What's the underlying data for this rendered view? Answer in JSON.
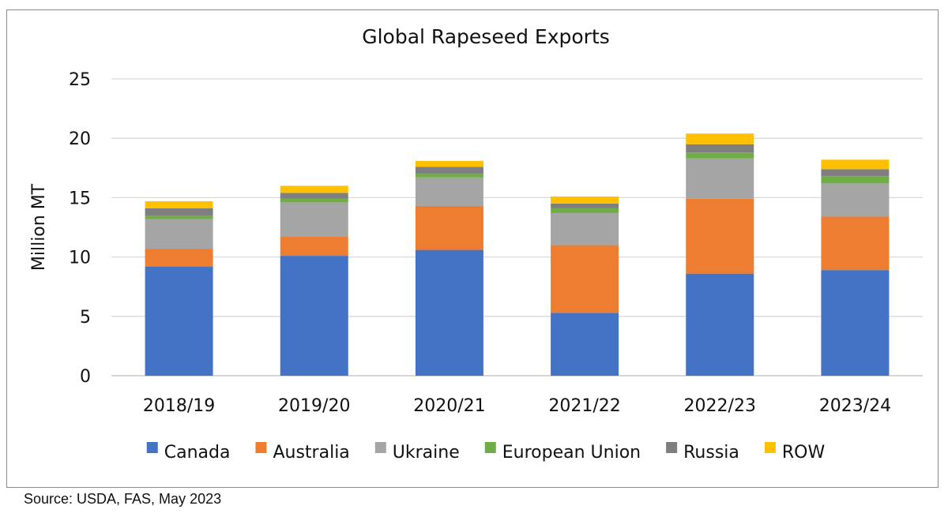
{
  "chart_data": {
    "type": "bar",
    "stacked": true,
    "title": "Global Rapeseed Exports",
    "xlabel": "",
    "ylabel": "Million MT",
    "ylim": [
      0,
      25
    ],
    "yticks": [
      0,
      5,
      10,
      15,
      20,
      25
    ],
    "grid": true,
    "legend_position": "bottom",
    "categories": [
      "2018/19",
      "2019/20",
      "2020/21",
      "2021/22",
      "2022/23",
      "2023/24"
    ],
    "series": [
      {
        "name": "Canada",
        "color": "#4472c4",
        "values": [
          9.2,
          10.1,
          10.6,
          5.3,
          8.6,
          8.9
        ]
      },
      {
        "name": "Australia",
        "color": "#ed7d31",
        "values": [
          1.5,
          1.6,
          3.7,
          5.7,
          6.3,
          4.5
        ]
      },
      {
        "name": "Ukraine",
        "color": "#a5a5a5",
        "values": [
          2.5,
          2.9,
          2.4,
          2.7,
          3.4,
          2.8
        ]
      },
      {
        "name": "European Union",
        "color": "#70ad47",
        "values": [
          0.3,
          0.3,
          0.3,
          0.4,
          0.5,
          0.6
        ]
      },
      {
        "name": "Russia",
        "color": "#7f7f7f",
        "values": [
          0.6,
          0.5,
          0.6,
          0.4,
          0.7,
          0.6
        ]
      },
      {
        "name": "ROW",
        "color": "#ffc000",
        "values": [
          0.6,
          0.6,
          0.5,
          0.6,
          0.9,
          0.8
        ]
      }
    ]
  },
  "source_note": "Source: USDA, FAS, May 2023"
}
